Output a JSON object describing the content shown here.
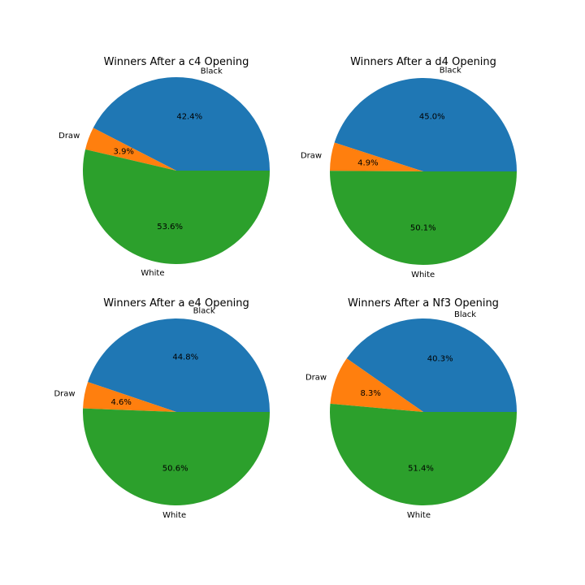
{
  "chart_data": [
    {
      "type": "pie",
      "title": "Winners After a c4 Opening",
      "labels": [
        "Black",
        "Draw",
        "White"
      ],
      "values": [
        42.4,
        3.9,
        53.6
      ],
      "percent_labels": [
        "42.4%",
        "3.9%",
        "53.6%"
      ],
      "colors": [
        "#1f77b4",
        "#ff7f0e",
        "#2ca02c"
      ]
    },
    {
      "type": "pie",
      "title": "Winners After a d4 Opening",
      "labels": [
        "Black",
        "Draw",
        "White"
      ],
      "values": [
        45.0,
        4.9,
        50.1
      ],
      "percent_labels": [
        "45.0%",
        "4.9%",
        "50.1%"
      ],
      "colors": [
        "#1f77b4",
        "#ff7f0e",
        "#2ca02c"
      ]
    },
    {
      "type": "pie",
      "title": "Winners After a e4 Opening",
      "labels": [
        "Black",
        "Draw",
        "White"
      ],
      "values": [
        44.8,
        4.6,
        50.6
      ],
      "percent_labels": [
        "44.8%",
        "4.6%",
        "50.6%"
      ],
      "colors": [
        "#1f77b4",
        "#ff7f0e",
        "#2ca02c"
      ]
    },
    {
      "type": "pie",
      "title": "Winners After a Nf3 Opening",
      "labels": [
        "Black",
        "Draw",
        "White"
      ],
      "values": [
        40.3,
        8.3,
        51.4
      ],
      "percent_labels": [
        "40.3%",
        "8.3%",
        "51.4%"
      ],
      "colors": [
        "#1f77b4",
        "#ff7f0e",
        "#2ca02c"
      ]
    }
  ]
}
